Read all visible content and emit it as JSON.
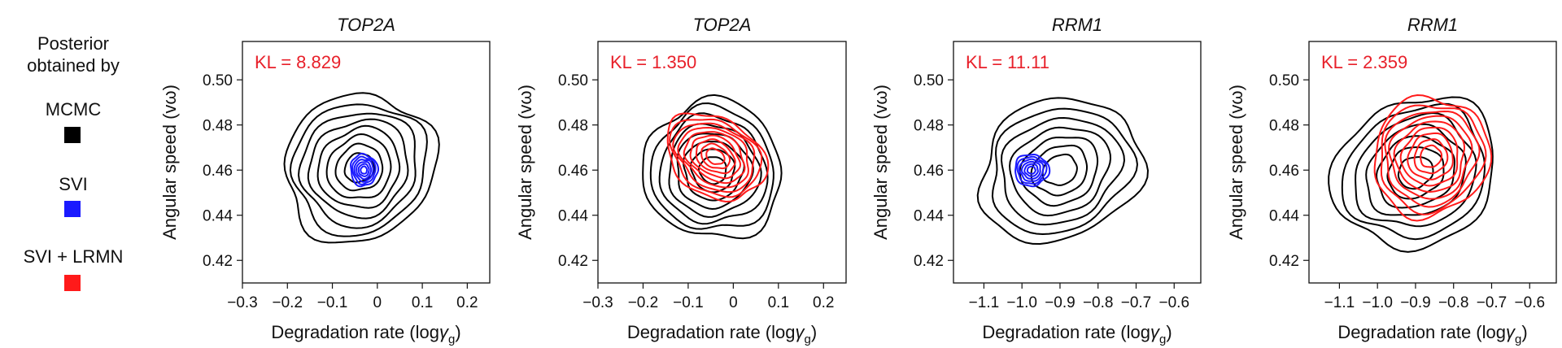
{
  "legend": {
    "title_line1": "Posterior",
    "title_line2": "obtained by",
    "items": [
      {
        "label": "MCMC",
        "color": "#000000"
      },
      {
        "label": "SVI",
        "color": "#1a1aff"
      },
      {
        "label": "SVI + LRMN",
        "color": "#ff1a1a"
      }
    ]
  },
  "chart_data": [
    {
      "type": "contour",
      "title": "TOP2A",
      "annotation": "KL = 8.829",
      "xlabel": "Degradation rate (logγg)",
      "ylabel": "Angular speed (vω)",
      "xlim": [
        -0.3,
        0.25
      ],
      "ylim": [
        0.41,
        0.517
      ],
      "xticks": [
        -0.3,
        -0.2,
        -0.1,
        0,
        0.1,
        0.2
      ],
      "xticklabels": [
        "−0.3",
        "−0.2",
        "−0.1",
        "0",
        "0.1",
        "0.2"
      ],
      "yticks": [
        0.42,
        0.44,
        0.46,
        0.48,
        0.5
      ],
      "yticklabels": [
        "0.42",
        "0.44",
        "0.46",
        "0.48",
        "0.50"
      ],
      "series": [
        {
          "name": "MCMC",
          "center": [
            -0.04,
            0.461
          ],
          "sx": 0.15,
          "sy": 0.038,
          "rho": 0.55,
          "levels": 8
        },
        {
          "name": "SVI",
          "center": [
            -0.03,
            0.46
          ],
          "sx": 0.03,
          "sy": 0.007,
          "rho": 0.0,
          "levels": 6
        }
      ]
    },
    {
      "type": "contour",
      "title": "TOP2A",
      "annotation": "KL = 1.350",
      "xlabel": "Degradation rate (logγg)",
      "ylabel": "Angular speed (vω)",
      "xlim": [
        -0.3,
        0.25
      ],
      "ylim": [
        0.41,
        0.517
      ],
      "xticks": [
        -0.3,
        -0.2,
        -0.1,
        0,
        0.1,
        0.2
      ],
      "xticklabels": [
        "−0.3",
        "−0.2",
        "−0.1",
        "0",
        "0.1",
        "0.2"
      ],
      "yticks": [
        0.42,
        0.44,
        0.46,
        0.48,
        0.5
      ],
      "yticklabels": [
        "0.42",
        "0.44",
        "0.46",
        "0.48",
        "0.50"
      ],
      "series": [
        {
          "name": "MCMC",
          "center": [
            -0.045,
            0.46
          ],
          "sx": 0.13,
          "sy": 0.038,
          "rho": 0.6,
          "levels": 8
        },
        {
          "name": "SVI + LRMN",
          "center": [
            -0.04,
            0.466
          ],
          "sx": 0.07,
          "sy": 0.032,
          "rho": 0.82,
          "levels": 9
        }
      ]
    },
    {
      "type": "contour",
      "title": "RRM1",
      "annotation": "KL = 11.11",
      "xlabel": "Degradation rate (logγg)",
      "ylabel": "Angular speed (vω)",
      "xlim": [
        -1.18,
        -0.53
      ],
      "ylim": [
        0.41,
        0.517
      ],
      "xticks": [
        -1.1,
        -1.0,
        -0.9,
        -0.8,
        -0.7,
        -0.6
      ],
      "xticklabels": [
        "−1.1",
        "−1.0",
        "−0.9",
        "−0.8",
        "−0.7",
        "−0.6"
      ],
      "yticks": [
        0.42,
        0.44,
        0.46,
        0.48,
        0.5
      ],
      "yticklabels": [
        "0.42",
        "0.44",
        "0.46",
        "0.48",
        "0.50"
      ],
      "series": [
        {
          "name": "MCMC",
          "center": [
            -0.9,
            0.46
          ],
          "sx": 0.2,
          "sy": 0.034,
          "rho": 0.35,
          "levels": 7
        },
        {
          "name": "SVI",
          "center": [
            -0.975,
            0.46
          ],
          "sx": 0.045,
          "sy": 0.007,
          "rho": 0.0,
          "levels": 6
        }
      ]
    },
    {
      "type": "contour",
      "title": "RRM1",
      "annotation": "KL = 2.359",
      "xlabel": "Degradation rate (logγg)",
      "ylabel": "Angular speed (vω)",
      "xlim": [
        -1.18,
        -0.53
      ],
      "ylim": [
        0.41,
        0.517
      ],
      "xticks": [
        -1.1,
        -1.0,
        -0.9,
        -0.8,
        -0.7,
        -0.6
      ],
      "xticklabels": [
        "−1.1",
        "−1.0",
        "−0.9",
        "−0.8",
        "−0.7",
        "−0.6"
      ],
      "yticks": [
        0.42,
        0.44,
        0.46,
        0.48,
        0.5
      ],
      "yticklabels": [
        "0.42",
        "0.44",
        "0.46",
        "0.48",
        "0.50"
      ],
      "series": [
        {
          "name": "MCMC",
          "center": [
            -0.9,
            0.459
          ],
          "sx": 0.2,
          "sy": 0.036,
          "rho": 0.4,
          "levels": 7
        },
        {
          "name": "SVI + LRMN",
          "center": [
            -0.86,
            0.466
          ],
          "sx": 0.13,
          "sy": 0.034,
          "rho": 0.82,
          "levels": 9
        }
      ]
    }
  ]
}
